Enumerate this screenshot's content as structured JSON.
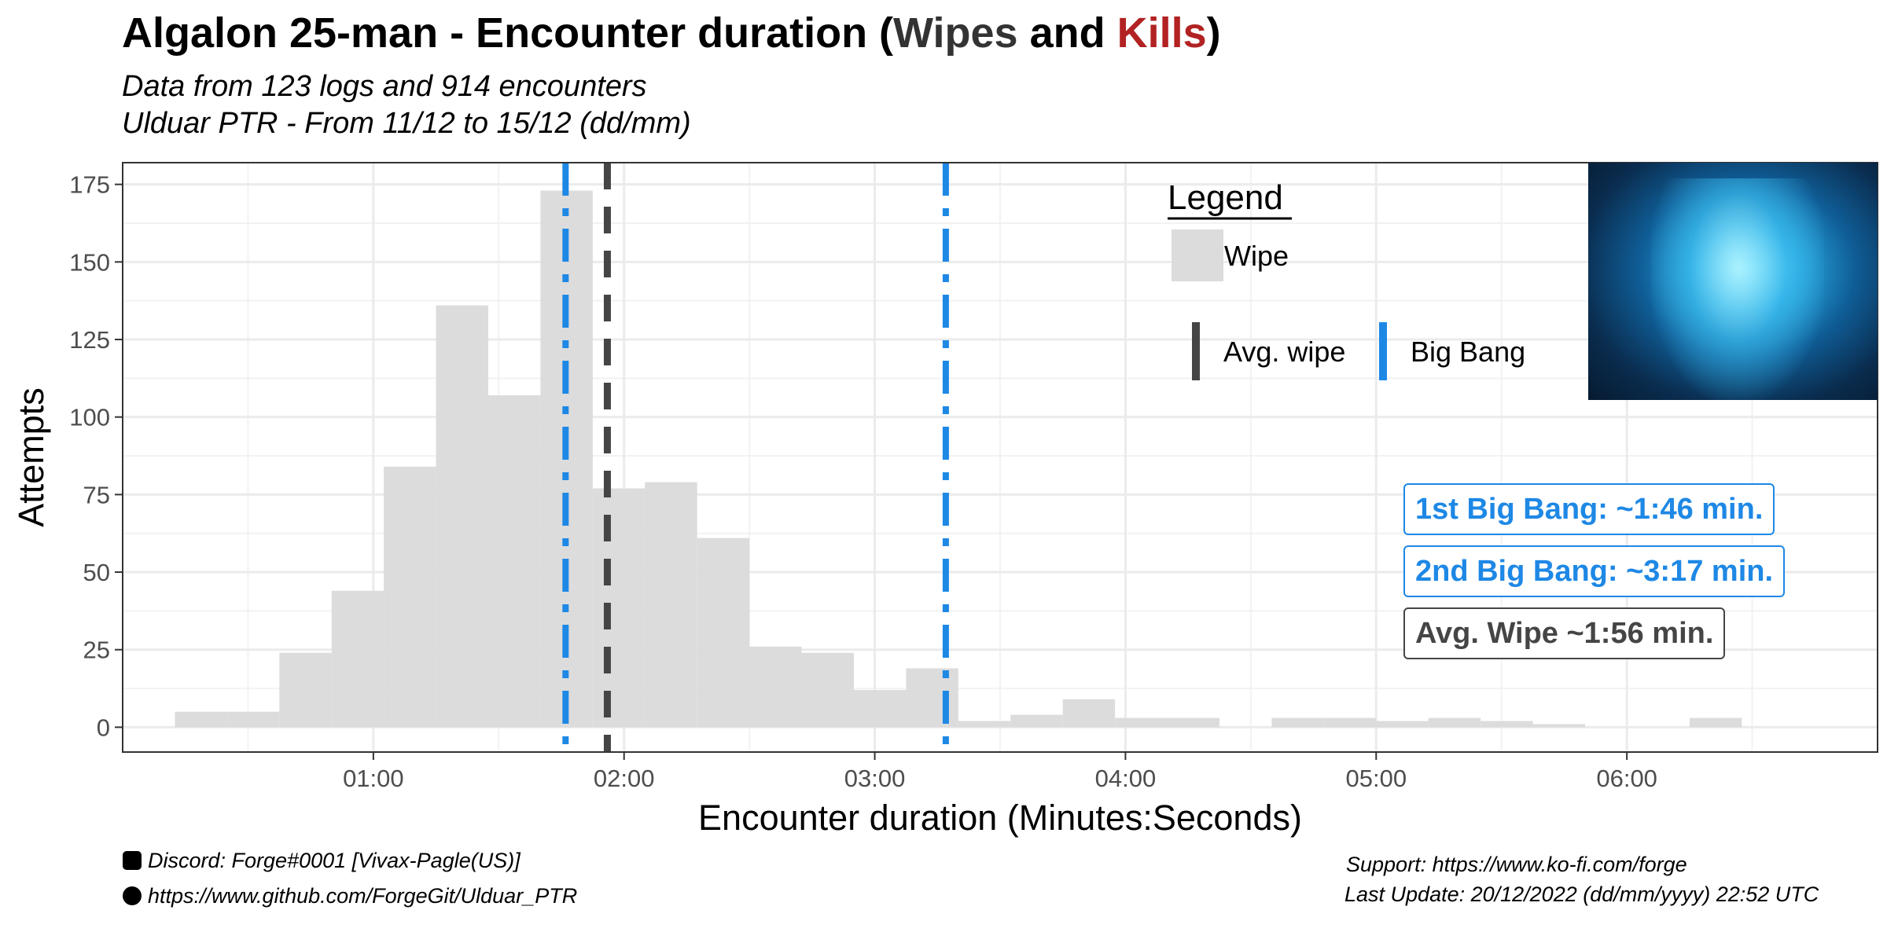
{
  "title": {
    "prefix": "Algalon 25-man - Encounter duration (",
    "wipes": "Wipes",
    "and": " and ",
    "kills": "Kills",
    "suffix": ")"
  },
  "subtitle_line1": "Data from 123 logs and 914 encounters",
  "subtitle_line2": "Ulduar PTR - From 11/12 to 15/12 (dd/mm)",
  "annotations": {
    "first_big_bang": "1st Big Bang: ~1:46 min.",
    "second_big_bang": "2nd Big Bang: ~3:17 min.",
    "avg_wipe": "Avg. Wipe ~1:56 min."
  },
  "footer": {
    "discord": "Discord: Forge#0001 [Vivax-Pagle(US)]",
    "github": "https://www.github.com/ForgeGit/Ulduar_PTR",
    "support": "Support: https://www.ko-fi.com/forge",
    "last_update": "Last Update: 20/12/2022 (dd/mm/yyyy) 22:52 UTC"
  },
  "colors": {
    "wipe_fill": "#DCDCDC",
    "avg_wipe_line": "#454545",
    "big_bang_line": "#1E88E5",
    "kills_title": "#B22222"
  },
  "image": {
    "icon": "algalon-boss-portrait"
  },
  "chart_data": {
    "type": "bar",
    "title": "Algalon 25-man - Encounter duration (Wipes and Kills)",
    "xlabel": "Encounter duration (Minutes:Seconds)",
    "ylabel": "Attempts",
    "x_unit": "seconds",
    "xlim": [
      0,
      420
    ],
    "ylim": [
      -8,
      182
    ],
    "x_ticks": [
      60,
      120,
      180,
      240,
      300,
      360
    ],
    "x_tick_labels": [
      "01:00",
      "02:00",
      "03:00",
      "04:00",
      "05:00",
      "06:00"
    ],
    "y_ticks": [
      0,
      25,
      50,
      75,
      100,
      125,
      150,
      175
    ],
    "bin_width_seconds": 12.5,
    "series": [
      {
        "name": "Wipe",
        "bins": [
          {
            "x0": 12.5,
            "x1": 25,
            "count": 5
          },
          {
            "x0": 25,
            "x1": 37.5,
            "count": 5
          },
          {
            "x0": 37.5,
            "x1": 50,
            "count": 24
          },
          {
            "x0": 50,
            "x1": 62.5,
            "count": 44
          },
          {
            "x0": 62.5,
            "x1": 75,
            "count": 84
          },
          {
            "x0": 75,
            "x1": 87.5,
            "count": 136
          },
          {
            "x0": 87.5,
            "x1": 100,
            "count": 107
          },
          {
            "x0": 100,
            "x1": 112.5,
            "count": 173
          },
          {
            "x0": 112.5,
            "x1": 125,
            "count": 77
          },
          {
            "x0": 125,
            "x1": 137.5,
            "count": 79
          },
          {
            "x0": 137.5,
            "x1": 150,
            "count": 61
          },
          {
            "x0": 150,
            "x1": 162.5,
            "count": 26
          },
          {
            "x0": 162.5,
            "x1": 175,
            "count": 24
          },
          {
            "x0": 175,
            "x1": 187.5,
            "count": 12
          },
          {
            "x0": 187.5,
            "x1": 200,
            "count": 19
          },
          {
            "x0": 200,
            "x1": 212.5,
            "count": 2
          },
          {
            "x0": 212.5,
            "x1": 225,
            "count": 4
          },
          {
            "x0": 225,
            "x1": 237.5,
            "count": 9
          },
          {
            "x0": 237.5,
            "x1": 250,
            "count": 3
          },
          {
            "x0": 250,
            "x1": 262.5,
            "count": 3
          },
          {
            "x0": 275,
            "x1": 287.5,
            "count": 3
          },
          {
            "x0": 287.5,
            "x1": 300,
            "count": 3
          },
          {
            "x0": 300,
            "x1": 312.5,
            "count": 2
          },
          {
            "x0": 312.5,
            "x1": 325,
            "count": 3
          },
          {
            "x0": 325,
            "x1": 337.5,
            "count": 2
          },
          {
            "x0": 337.5,
            "x1": 350,
            "count": 1
          },
          {
            "x0": 375,
            "x1": 387.5,
            "count": 3
          }
        ]
      }
    ],
    "reference_lines": [
      {
        "name": "Avg. wipe",
        "x": 116,
        "style": "dashed"
      },
      {
        "name": "Big Bang",
        "x": 106,
        "style": "dotdash"
      },
      {
        "name": "Big Bang",
        "x": 197,
        "style": "dotdash"
      }
    ],
    "legend": {
      "title": "Legend",
      "fill_label": "Wipe",
      "line_labels": [
        "Avg. wipe",
        "Big Bang"
      ],
      "placement": "top-right"
    },
    "grid": true
  }
}
